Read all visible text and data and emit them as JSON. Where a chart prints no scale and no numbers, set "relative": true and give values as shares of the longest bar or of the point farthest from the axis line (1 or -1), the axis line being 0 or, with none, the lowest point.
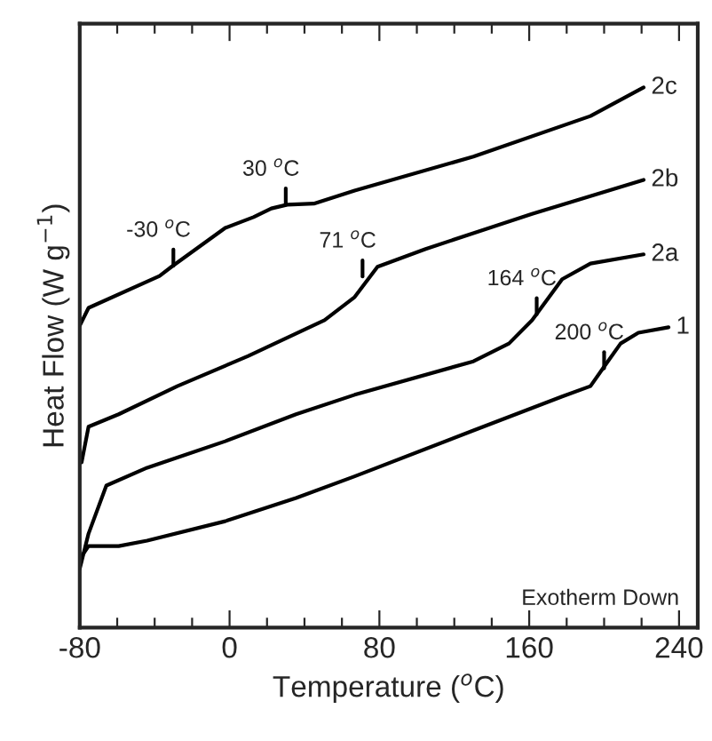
{
  "chart_data": {
    "type": "line",
    "relative": true,
    "xlabel": "Temperature ($^{o}$C)",
    "ylabel": "Heat Flow (W g$^{−1}$)",
    "xlim": [
      -80,
      250
    ],
    "xticks": [
      -80,
      {
        "value": -60,
        "label": null
      },
      {
        "value": -40,
        "label": null
      },
      {
        "value": -20,
        "label": null
      },
      0,
      {
        "value": 20,
        "label": null
      },
      {
        "value": 40,
        "label": null
      },
      {
        "value": 60,
        "label": null
      },
      80,
      {
        "value": 100,
        "label": null
      },
      {
        "value": 120,
        "label": null
      },
      {
        "value": 140,
        "label": null
      },
      160,
      {
        "value": 180,
        "label": null
      },
      {
        "value": 200,
        "label": null
      },
      {
        "value": 220,
        "label": null
      },
      240
    ],
    "grid": false,
    "legend": false,
    "line_style": "solid",
    "marker": "none",
    "series": [
      {
        "name": "2c",
        "color": "#000000",
        "x": [
          -80,
          -75.3,
          -37.4,
          -31,
          -2.3,
          12.8,
          22.3,
          30.8,
          45,
          66.8,
          130.2,
          192.7,
          221.1
        ],
        "values": [
          0.559,
          0.592,
          0.651,
          0.668,
          0.74,
          0.76,
          0.776,
          0.783,
          0.785,
          0.809,
          0.872,
          0.947,
          1.0
        ]
      },
      {
        "name": "2b",
        "color": "#000000",
        "x": [
          -79,
          -75.3,
          -59.2,
          -27.9,
          3.3,
          10,
          50.7,
          66.8,
          79,
          104.7,
          161.5,
          221.1
        ],
        "values": [
          0.306,
          0.372,
          0.395,
          0.447,
          0.493,
          0.503,
          0.569,
          0.612,
          0.668,
          0.701,
          0.766,
          0.829
        ]
      },
      {
        "name": "2a",
        "color": "#000000",
        "x": [
          -80,
          -75.3,
          -65.8,
          -44,
          -2.3,
          35.5,
          66.8,
          130.2,
          149.2,
          161.5,
          177.6,
          192.7,
          221.1
        ],
        "values": [
          0.109,
          0.174,
          0.263,
          0.296,
          0.345,
          0.395,
          0.431,
          0.493,
          0.526,
          0.569,
          0.645,
          0.674,
          0.691
        ]
      },
      {
        "name": "1",
        "color": "#000000",
        "x": [
          -79,
          -75.3,
          -59.2,
          -44,
          -2.3,
          35.5,
          66.8,
          130.2,
          177.6,
          192.7,
          199.4,
          208.8,
          218.3,
          234.4
        ],
        "values": [
          0.132,
          0.151,
          0.151,
          0.161,
          0.197,
          0.24,
          0.28,
          0.365,
          0.428,
          0.447,
          0.48,
          0.526,
          0.546,
          0.556
        ]
      }
    ],
    "annotations": [
      {
        "text": "-30 $^{o}$C",
        "x": -30,
        "y": 0.67
      },
      {
        "text": "30 $^{o}$C",
        "x": 30,
        "y": 0.783
      },
      {
        "text": "71 $^{o}$C",
        "x": 71,
        "y": 0.65
      },
      {
        "text": "164 $^{o}$C",
        "x": 164,
        "y": 0.58
      },
      {
        "text": "200 $^{o}$C",
        "x": 200,
        "y": 0.48
      },
      "Exotherm Down"
    ]
  }
}
